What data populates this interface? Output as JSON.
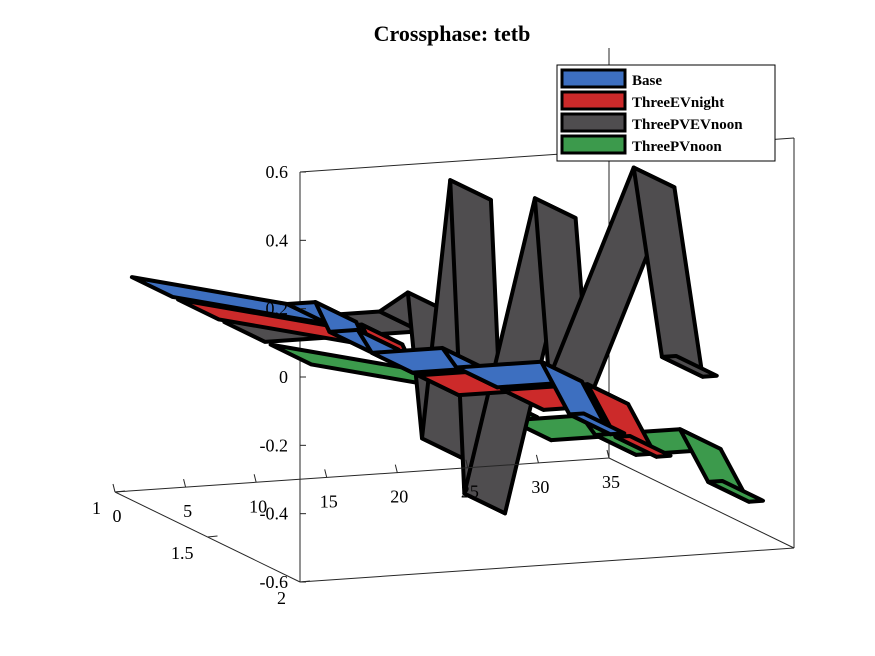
{
  "chart_data": {
    "type": "ribbon3d",
    "title": "Crossphase: tetb",
    "xlabel": "",
    "ylabel": "",
    "zlabel": "",
    "x_ticks": [
      "0",
      "5",
      "10",
      "15",
      "20",
      "25",
      "30",
      "35"
    ],
    "y_ticks": [
      "1",
      "1.5",
      "2"
    ],
    "z_ticks": [
      "0.6",
      "0.4",
      "0.2",
      "0",
      "-0.2",
      "-0.4",
      "-0.6"
    ],
    "xlim": [
      0,
      35
    ],
    "ylim": [
      1,
      2
    ],
    "zlim": [
      -0.6,
      0.6
    ],
    "grid": false,
    "legend_position": "top-right",
    "x": [
      1,
      12,
      14,
      15,
      17,
      18,
      23,
      24,
      30,
      32,
      33
    ],
    "series": [
      {
        "name": "Base",
        "color": "#3d6fc0",
        "values": [
          0.03,
          -0.08,
          -0.08,
          -0.17,
          -0.17,
          -0.24,
          -0.24,
          -0.3,
          -0.3,
          -0.46,
          -0.46
        ]
      },
      {
        "name": "ThreeEVnight",
        "color": "#cc2a2a",
        "values": [
          0.03,
          -0.08,
          -0.08,
          -0.17,
          -0.17,
          -0.24,
          -0.24,
          -0.3,
          -0.3,
          -0.46,
          -0.46
        ]
      },
      {
        "name": "ThreePVEVnoon",
        "color": "#4f4d4f",
        "values": [
          0.03,
          0.03,
          0.08,
          -0.35,
          0.4,
          -0.52,
          0.33,
          -0.2,
          0.4,
          -0.16,
          -0.16
        ]
      },
      {
        "name": "ThreePVnoon",
        "color": "#3c9a4c",
        "values": [
          0.03,
          -0.08,
          -0.08,
          -0.17,
          -0.17,
          -0.24,
          -0.24,
          -0.3,
          -0.3,
          -0.46,
          -0.46
        ]
      }
    ]
  }
}
